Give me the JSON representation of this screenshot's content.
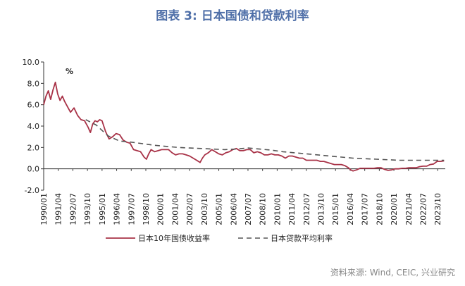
{
  "title": "图表 3:  日本国债和贷款利率",
  "source": "资料来源: Wind, CEIC, 兴业研究",
  "chart_data": {
    "type": "line",
    "unit_label": "%",
    "ylim": [
      -2.0,
      10.0
    ],
    "yticks": [
      "10.0",
      "8.0",
      "6.0",
      "4.0",
      "2.0",
      "0.0",
      "-2.0"
    ],
    "ytick_values": [
      10,
      8,
      6,
      4,
      2,
      0,
      -2
    ],
    "xlim": [
      1990.0,
      2024.4
    ],
    "xticks": [
      "1990/01",
      "1991/04",
      "1992/07",
      "1993/10",
      "1995/01",
      "1996/04",
      "1997/07",
      "1998/10",
      "2000/01",
      "2001/04",
      "2002/07",
      "2003/10",
      "2005/01",
      "2006/04",
      "2007/07",
      "2008/10",
      "2010/01",
      "2011/04",
      "2012/07",
      "2013/10",
      "2015/01",
      "2016/04",
      "2017/07",
      "2018/10",
      "2020/01",
      "2021/04",
      "2022/07",
      "2023/10"
    ],
    "xtick_values": [
      1990.0,
      1991.25,
      1992.5,
      1993.75,
      1995.0,
      1996.25,
      1997.5,
      1998.75,
      2000.0,
      2001.25,
      2002.5,
      2003.75,
      2005.0,
      2006.25,
      2007.5,
      2008.75,
      2010.0,
      2011.25,
      2012.5,
      2013.75,
      2015.0,
      2016.25,
      2017.5,
      2018.75,
      2020.0,
      2021.25,
      2022.5,
      2023.75
    ],
    "grid": false,
    "legend_position": "bottom",
    "series": [
      {
        "name": "日本10年国债收益率",
        "color": "#a83247",
        "style": "solid",
        "x": [
          1990.0,
          1990.2,
          1990.4,
          1990.6,
          1990.8,
          1991.0,
          1991.2,
          1991.4,
          1991.6,
          1991.8,
          1992.0,
          1992.3,
          1992.6,
          1992.9,
          1993.2,
          1993.5,
          1993.8,
          1994.0,
          1994.2,
          1994.4,
          1994.6,
          1994.8,
          1995.0,
          1995.3,
          1995.6,
          1995.9,
          1996.2,
          1996.5,
          1996.8,
          1997.1,
          1997.4,
          1997.7,
          1998.0,
          1998.3,
          1998.6,
          1998.8,
          1999.0,
          1999.2,
          1999.5,
          1999.8,
          2000.1,
          2000.4,
          2000.7,
          2001.0,
          2001.3,
          2001.6,
          2001.9,
          2002.2,
          2002.5,
          2002.8,
          2003.1,
          2003.4,
          2003.6,
          2003.8,
          2004.1,
          2004.4,
          2004.7,
          2005.0,
          2005.3,
          2005.6,
          2005.9,
          2006.2,
          2006.5,
          2006.8,
          2007.1,
          2007.4,
          2007.7,
          2008.0,
          2008.3,
          2008.6,
          2008.9,
          2009.2,
          2009.5,
          2009.8,
          2010.1,
          2010.4,
          2010.7,
          2011.0,
          2011.3,
          2011.6,
          2011.9,
          2012.2,
          2012.5,
          2012.8,
          2013.1,
          2013.4,
          2013.7,
          2014.0,
          2014.3,
          2014.6,
          2014.9,
          2015.2,
          2015.5,
          2015.8,
          2016.1,
          2016.3,
          2016.5,
          2016.8,
          2017.1,
          2017.4,
          2017.7,
          2018.0,
          2018.3,
          2018.6,
          2018.9,
          2019.2,
          2019.5,
          2019.8,
          2020.1,
          2020.4,
          2020.7,
          2021.0,
          2021.3,
          2021.6,
          2021.9,
          2022.2,
          2022.5,
          2022.8,
          2023.1,
          2023.4,
          2023.7,
          2024.0,
          2024.3
        ],
        "y": [
          6.0,
          6.8,
          7.3,
          6.5,
          7.4,
          8.1,
          7.0,
          6.4,
          6.8,
          6.3,
          5.9,
          5.3,
          5.7,
          5.0,
          4.6,
          4.5,
          3.9,
          3.4,
          4.2,
          4.5,
          4.4,
          4.6,
          4.5,
          3.5,
          2.8,
          3.0,
          3.3,
          3.2,
          2.7,
          2.5,
          2.4,
          1.8,
          1.7,
          1.6,
          1.1,
          0.9,
          1.4,
          1.8,
          1.6,
          1.7,
          1.8,
          1.8,
          1.8,
          1.5,
          1.3,
          1.4,
          1.4,
          1.3,
          1.2,
          1.0,
          0.8,
          0.6,
          1.0,
          1.3,
          1.5,
          1.8,
          1.6,
          1.4,
          1.3,
          1.5,
          1.6,
          1.8,
          1.9,
          1.7,
          1.7,
          1.8,
          1.8,
          1.5,
          1.6,
          1.5,
          1.3,
          1.3,
          1.4,
          1.3,
          1.3,
          1.2,
          1.0,
          1.2,
          1.2,
          1.1,
          1.0,
          1.0,
          0.8,
          0.8,
          0.8,
          0.8,
          0.7,
          0.7,
          0.6,
          0.5,
          0.4,
          0.4,
          0.4,
          0.3,
          0.1,
          -0.1,
          -0.2,
          -0.1,
          0.05,
          0.05,
          0.05,
          0.05,
          0.05,
          0.1,
          0.1,
          -0.05,
          -0.15,
          -0.1,
          0.0,
          0.0,
          0.05,
          0.05,
          0.1,
          0.1,
          0.1,
          0.2,
          0.25,
          0.25,
          0.4,
          0.45,
          0.7,
          0.7,
          0.75
        ]
      },
      {
        "name": "日本贷款平均利率",
        "color": "#555555",
        "style": "dashed",
        "x": [
          1993.6,
          1994.5,
          1995.5,
          1996.5,
          1997.5,
          1998.5,
          1999.5,
          2000.5,
          2001.5,
          2002.5,
          2003.5,
          2004.5,
          2005.5,
          2006.5,
          2007.5,
          2008.5,
          2009.5,
          2010.5,
          2011.5,
          2012.5,
          2013.5,
          2014.5,
          2015.5,
          2016.5,
          2017.5,
          2018.5,
          2019.5,
          2020.5,
          2021.5,
          2022.5,
          2023.5,
          2024.3
        ],
        "y": [
          4.6,
          4.1,
          3.1,
          2.6,
          2.5,
          2.35,
          2.2,
          2.1,
          2.0,
          1.95,
          1.9,
          1.85,
          1.8,
          1.85,
          1.95,
          1.85,
          1.75,
          1.6,
          1.5,
          1.4,
          1.3,
          1.2,
          1.1,
          1.0,
          0.95,
          0.9,
          0.85,
          0.8,
          0.8,
          0.8,
          0.8,
          0.8
        ]
      }
    ]
  }
}
